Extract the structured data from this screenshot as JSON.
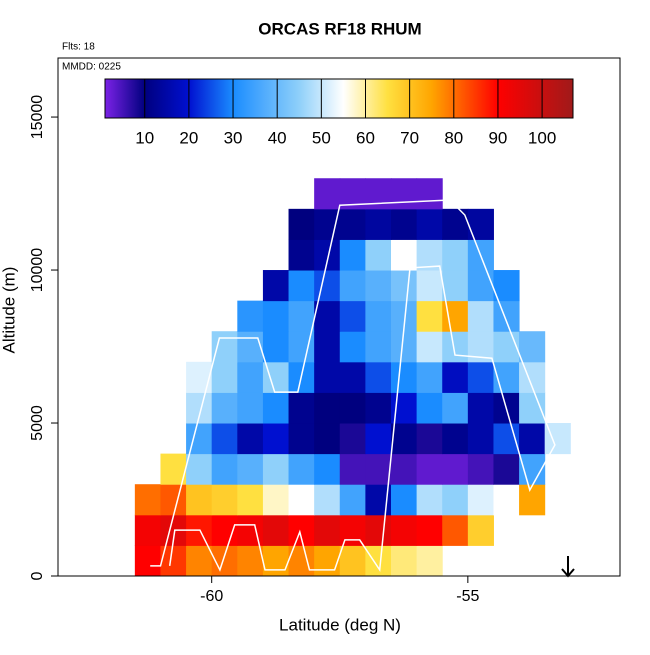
{
  "chart_data": {
    "type": "heatmap",
    "title": "ORCAS RF18 RHUM",
    "subtitle": "Flts: 18",
    "annotation": "MMDD: 0225",
    "x_label": "Latitude (deg N)",
    "y_label": "Altitude (m)",
    "xlim": [
      -63,
      -52.03
    ],
    "ylim": [
      0,
      16930
    ],
    "xticks": [
      -60,
      -55
    ],
    "yticks": [
      0,
      5000,
      10000,
      15000
    ],
    "x_edges": [
      -61.5,
      -61,
      -60.5,
      -60,
      -59.5,
      -59,
      -58.5,
      -58,
      -57.5,
      -57,
      -56.5,
      -56,
      -55.5,
      -55,
      -54.5,
      -54,
      -53.5,
      -53
    ],
    "y_edges": [
      0,
      1000,
      2000,
      3000,
      4000,
      5000,
      6000,
      7000,
      8000,
      9000,
      10000,
      11000,
      12000,
      13000
    ],
    "z": [
      [
        90,
        85,
        78,
        80,
        78,
        75,
        78,
        75,
        70,
        65,
        62,
        60,
        null,
        null,
        null,
        null,
        null
      ],
      [
        92,
        95,
        88,
        90,
        92,
        95,
        90,
        95,
        92,
        95,
        92,
        90,
        82,
        68,
        null,
        null,
        null
      ],
      [
        80,
        82,
        70,
        68,
        65,
        58,
        55,
        48,
        35,
        15,
        30,
        48,
        45,
        52,
        55,
        75,
        null
      ],
      [
        null,
        65,
        45,
        35,
        38,
        45,
        35,
        30,
        5,
        5,
        5,
        3,
        3,
        5,
        8,
        35,
        null
      ],
      [
        null,
        null,
        35,
        25,
        15,
        20,
        12,
        10,
        8,
        20,
        12,
        8,
        12,
        15,
        25,
        15,
        50
      ],
      [
        null,
        null,
        48,
        38,
        35,
        30,
        12,
        10,
        10,
        12,
        20,
        30,
        35,
        15,
        12,
        45,
        null
      ],
      [
        null,
        null,
        52,
        45,
        35,
        45,
        30,
        15,
        15,
        25,
        30,
        35,
        18,
        25,
        35,
        48,
        null
      ],
      [
        null,
        null,
        null,
        45,
        38,
        30,
        35,
        15,
        30,
        35,
        38,
        50,
        45,
        48,
        45,
        40,
        null
      ],
      [
        null,
        null,
        null,
        null,
        32,
        30,
        35,
        15,
        25,
        35,
        38,
        65,
        75,
        48,
        35,
        null,
        null
      ],
      [
        null,
        null,
        null,
        null,
        null,
        15,
        30,
        25,
        35,
        38,
        42,
        50,
        45,
        35,
        30,
        null,
        null
      ],
      [
        null,
        null,
        null,
        null,
        null,
        null,
        12,
        15,
        30,
        45,
        55,
        48,
        45,
        35,
        null,
        null,
        null
      ],
      [
        null,
        null,
        null,
        null,
        null,
        null,
        10,
        12,
        12,
        14,
        12,
        15,
        12,
        14,
        null,
        null,
        null
      ],
      [
        null,
        null,
        null,
        null,
        null,
        null,
        null,
        3,
        3,
        3,
        3,
        3,
        null,
        null,
        null,
        null,
        null
      ]
    ],
    "colorbar_lim": [
      1,
      107
    ],
    "colorbar_ticks": [
      10,
      20,
      30,
      40,
      50,
      60,
      70,
      80,
      90,
      100
    ],
    "colorscale": [
      [
        1,
        "#7b22e6"
      ],
      [
        10,
        "#00007f"
      ],
      [
        20,
        "#0010d0"
      ],
      [
        30,
        "#1a8cff"
      ],
      [
        45,
        "#8fd0fa"
      ],
      [
        55,
        "#ffffff"
      ],
      [
        65,
        "#ffe040"
      ],
      [
        75,
        "#ffa500"
      ],
      [
        90,
        "#ff0000"
      ],
      [
        107,
        "#a01a1a"
      ]
    ],
    "track": {
      "color": "#ffffff",
      "x": [
        -61.2,
        -61.0,
        -59.85,
        -59.1,
        -58.77,
        -58.32,
        -57.5,
        -55.35,
        -55.06,
        -53.3,
        -53.79,
        -54.53,
        -55.25,
        -55.55,
        -56.13,
        -56.72,
        -57.11,
        -57.4,
        -57.6,
        -58.09,
        -58.28,
        -58.57,
        -58.96,
        -59.16,
        -59.55,
        -59.84,
        -60.23,
        -60.72,
        -60.82
      ],
      "y": [
        330,
        330,
        7780,
        7780,
        6010,
        6010,
        12120,
        12290,
        11800,
        4280,
        2810,
        7120,
        7220,
        10130,
        10070,
        200,
        1180,
        1180,
        200,
        200,
        1440,
        200,
        200,
        1670,
        1670,
        200,
        1500,
        1500,
        330
      ]
    }
  }
}
